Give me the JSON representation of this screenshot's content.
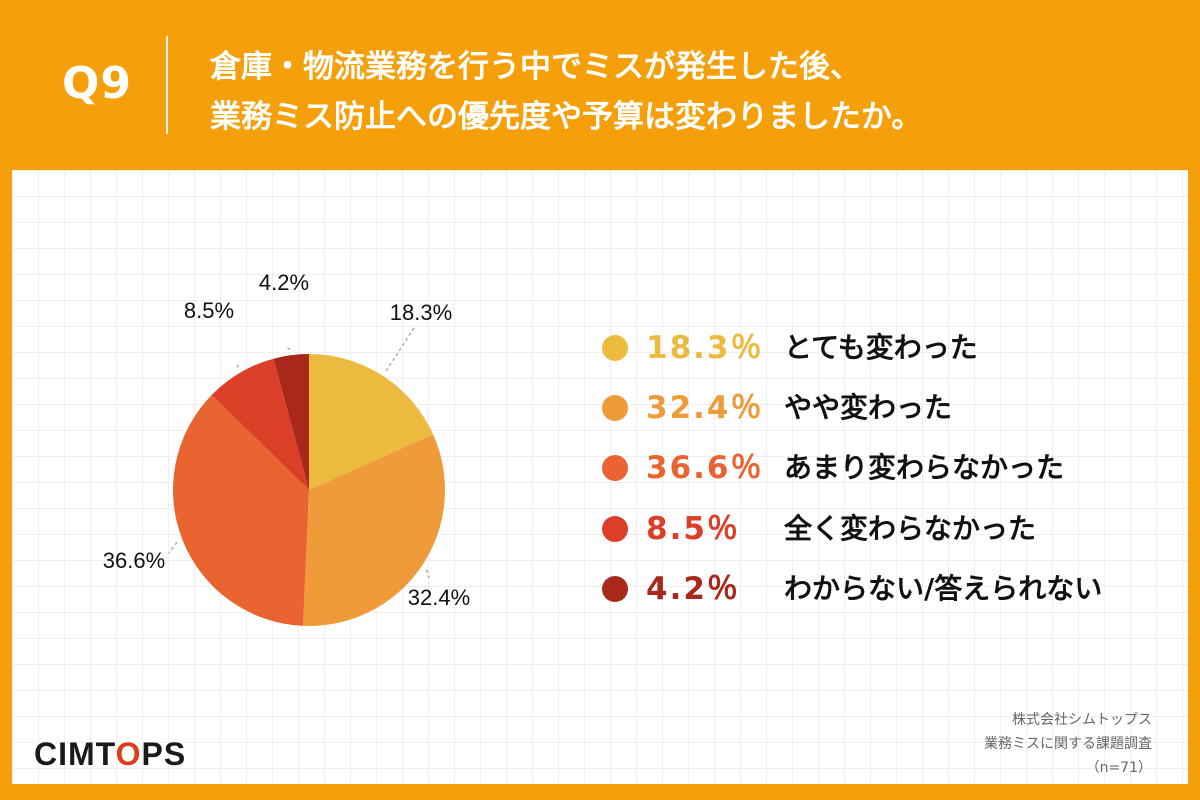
{
  "header": {
    "qnum": "Q9",
    "question_line1": "倉庫・物流業務を行う中でミスが発生した後、",
    "question_line2": "業務ミス防止への優先度や予算は変わりましたか。"
  },
  "chart_data": {
    "type": "pie",
    "slices": [
      {
        "label": "とても変わった",
        "value": 18.3,
        "value_label": "18.3%",
        "legend_value": "18.3％",
        "color": "#EDBA40"
      },
      {
        "label": "やや変わった",
        "value": 32.4,
        "value_label": "32.4%",
        "legend_value": "32.4％",
        "color": "#F09B3A"
      },
      {
        "label": "あまり変わらなかった",
        "value": 36.6,
        "value_label": "36.6%",
        "legend_value": "36.6％",
        "color": "#EA6431"
      },
      {
        "label": "全く変わらなかった",
        "value": 8.5,
        "value_label": "8.5%",
        "legend_value": "8.5％",
        "color": "#DC3F28"
      },
      {
        "label": "わからない/答えられない",
        "value": 4.2,
        "value_label": "4.2%",
        "legend_value": "4.2％",
        "color": "#A8291C"
      }
    ],
    "legend_position": "right"
  },
  "branding": {
    "logo_before": "CIMT",
    "logo_o": "O",
    "logo_after": "PS"
  },
  "credit": {
    "line1": "株式会社シムトップス",
    "line2": "業務ミスに関する課題調査",
    "line3": "（n=71）"
  }
}
